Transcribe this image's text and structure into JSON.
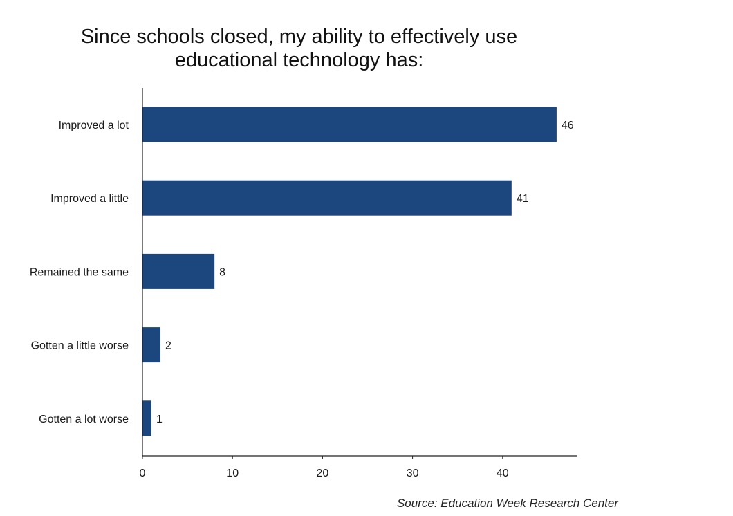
{
  "chart_data": {
    "type": "bar",
    "orientation": "horizontal",
    "title_lines": [
      "Since schools closed, my ability to effectively use",
      "educational technology has:"
    ],
    "categories": [
      "Improved a lot",
      "Improved a little",
      "Remained the same",
      "Gotten a little worse",
      "Gotten a lot worse"
    ],
    "values": [
      46,
      41,
      8,
      2,
      1
    ],
    "data_labels": [
      "46",
      "41",
      "8",
      "2",
      "1"
    ],
    "xticks": [
      0,
      10,
      20,
      30,
      40
    ],
    "xlim": [
      0,
      48
    ],
    "xlabel": "",
    "ylabel": "",
    "grid": false,
    "bar_color": "#1c477e",
    "source": "Source: Education Week Research Center"
  }
}
